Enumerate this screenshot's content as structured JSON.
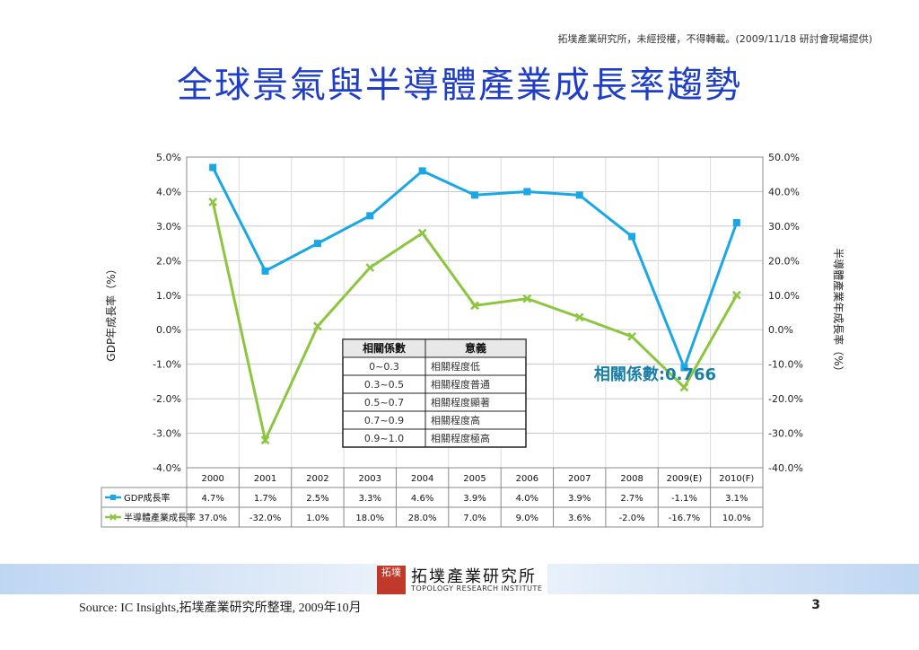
{
  "header": {
    "notice": "拓墣產業研究所，未經授權，不得轉載。(2009/11/18 研討會現場提供)",
    "title": "全球景氣與半導體產業成長率趨勢"
  },
  "chart_data": {
    "type": "line",
    "categories": [
      "2000",
      "2001",
      "2002",
      "2003",
      "2004",
      "2005",
      "2006",
      "2007",
      "2008",
      "2009(E)",
      "2010(F)"
    ],
    "series": [
      {
        "name": "GDP成長率",
        "axis": "left",
        "color": "#1aa7e6",
        "values": [
          4.7,
          1.7,
          2.5,
          3.3,
          4.6,
          3.9,
          4.0,
          3.9,
          2.7,
          -1.1,
          3.1
        ],
        "labels": [
          "4.7%",
          "1.7%",
          "2.5%",
          "3.3%",
          "4.6%",
          "3.9%",
          "4.0%",
          "3.9%",
          "2.7%",
          "-1.1%",
          "3.1%"
        ]
      },
      {
        "name": "半導體產業成長率",
        "axis": "right",
        "color": "#8cc63f",
        "values": [
          37.0,
          -32.0,
          1.0,
          18.0,
          28.0,
          7.0,
          9.0,
          3.6,
          -2.0,
          -16.7,
          10.0
        ],
        "labels": [
          "37.0%",
          "-32.0%",
          "1.0%",
          "18.0%",
          "28.0%",
          "7.0%",
          "9.0%",
          "3.6%",
          "-2.0%",
          "-16.7%",
          "10.0%"
        ]
      }
    ],
    "y_left": {
      "label": "GDP年成長率（%）",
      "ylim": [
        -4.0,
        5.0
      ],
      "ticks": [
        "5.0%",
        "4.0%",
        "3.0%",
        "2.0%",
        "1.0%",
        "0.0%",
        "-1.0%",
        "-2.0%",
        "-3.0%",
        "-4.0%"
      ]
    },
    "y_right": {
      "label": "半導體產業年成長率（%）",
      "ylim": [
        -40.0,
        50.0
      ],
      "ticks": [
        "50.0%",
        "40.0%",
        "30.0%",
        "20.0%",
        "10.0%",
        "0.0%",
        "-10.0%",
        "-20.0%",
        "-30.0%",
        "-40.0%"
      ]
    },
    "grid": true,
    "correlation_label": "相關係數:0.766",
    "correlation_table": {
      "headers": [
        "相關係數",
        "意義"
      ],
      "rows": [
        [
          "0~0.3",
          "相關程度低"
        ],
        [
          "0.3~0.5",
          "相關程度普通"
        ],
        [
          "0.5~0.7",
          "相關程度顯著"
        ],
        [
          "0.7~0.9",
          "相關程度高"
        ],
        [
          "0.9~1.0",
          "相關程度極高"
        ]
      ]
    }
  },
  "logo": {
    "mark": "拓墣",
    "name_zh": "拓墣產業研究所",
    "name_en": "TOPOLOGY RESEARCH INSTITUTE"
  },
  "footer": {
    "source": "Source: IC Insights,拓墣產業研究所整理, 2009年10月",
    "page": "3"
  }
}
